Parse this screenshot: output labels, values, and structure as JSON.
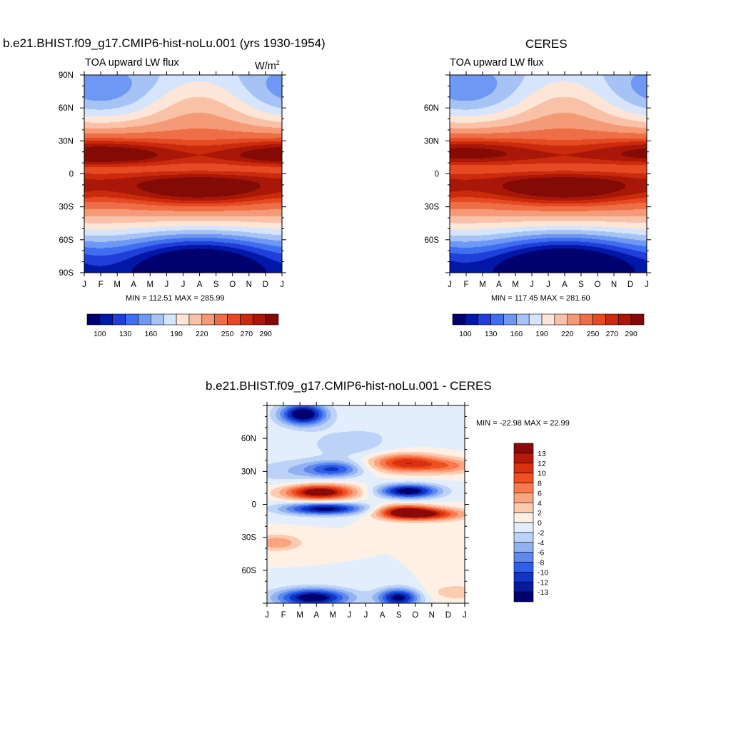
{
  "left_panel": {
    "title": "b.e21.BHIST.f09_g17.CMIP6-hist-noLu.001 (yrs 1930-1954)",
    "subtitle": "TOA upward LW flux",
    "units": "W/m",
    "units_sup": "2",
    "stats": "MIN = 112.51 MAX = 285.99"
  },
  "right_panel": {
    "title": "CERES",
    "subtitle": "TOA upward LW flux",
    "stats": "MIN = 117.45 MAX = 281.60"
  },
  "diff_panel": {
    "title": "b.e21.BHIST.f09_g17.CMIP6-hist-noLu.001 - CERES",
    "stats": "MIN = -22.98 MAX =  22.99"
  },
  "axes": {
    "months": [
      "J",
      "F",
      "M",
      "A",
      "M",
      "J",
      "J",
      "A",
      "S",
      "O",
      "N",
      "D",
      "J"
    ],
    "lat_labels_full": [
      "90N",
      "60N",
      "30N",
      "0",
      "30S",
      "60S",
      "90S"
    ],
    "lat_labels_partial": [
      "60N",
      "30N",
      "0",
      "30S",
      "60S"
    ]
  },
  "colorbar_abs": {
    "labels": [
      "100",
      "130",
      "160",
      "190",
      "220",
      "250",
      "270",
      "290"
    ],
    "colors": [
      "#00006e",
      "#0018a8",
      "#1f3fd8",
      "#3f6ef0",
      "#6f97f4",
      "#a7c3f5",
      "#d6e5fb",
      "#fde6d8",
      "#f9c2a8",
      "#f59a77",
      "#ee6e47",
      "#e64a22",
      "#cc2a0d",
      "#a81707",
      "#830a05"
    ]
  },
  "colorbar_diff": {
    "labels": [
      "13",
      "12",
      "10",
      "8",
      "6",
      "4",
      "2",
      "0",
      "-2",
      "-4",
      "-6",
      "-8",
      "-10",
      "-12",
      "-13"
    ],
    "colors": [
      "#8a0a0a",
      "#b51a0a",
      "#d9310e",
      "#f04f1e",
      "#f77a50",
      "#f9a581",
      "#fccbb0",
      "#fef0e4",
      "#e3eefc",
      "#bcd2f7",
      "#91b1f2",
      "#5f88ee",
      "#2f5ee7",
      "#1134c8",
      "#051b9c",
      "#00006e"
    ]
  },
  "chart_data": [
    {
      "type": "heatmap",
      "title": "b.e21.BHIST.f09_g17.CMIP6-hist-noLu.001 (yrs 1930-1954)",
      "subtitle": "TOA upward LW flux",
      "units": "W/m2",
      "x": [
        "J",
        "F",
        "M",
        "A",
        "M",
        "J",
        "J",
        "A",
        "S",
        "O",
        "N",
        "D",
        "J"
      ],
      "ylim": [
        -90,
        90
      ],
      "contour_levels": [
        100,
        115,
        130,
        145,
        160,
        175,
        190,
        205,
        220,
        235,
        250,
        260,
        270,
        280,
        290
      ],
      "min": 112.51,
      "max": 285.99
    },
    {
      "type": "heatmap",
      "title": "CERES",
      "subtitle": "TOA upward LW flux",
      "x": [
        "J",
        "F",
        "M",
        "A",
        "M",
        "J",
        "J",
        "A",
        "S",
        "O",
        "N",
        "D",
        "J"
      ],
      "ylim": [
        -90,
        90
      ],
      "contour_levels": [
        100,
        115,
        130,
        145,
        160,
        175,
        190,
        205,
        220,
        235,
        250,
        260,
        270,
        280,
        290
      ],
      "min": 117.45,
      "max": 281.6
    },
    {
      "type": "heatmap",
      "title": "b.e21.BHIST.f09_g17.CMIP6-hist-noLu.001 - CERES",
      "x": [
        "J",
        "F",
        "M",
        "A",
        "M",
        "J",
        "J",
        "A",
        "S",
        "O",
        "N",
        "D",
        "J"
      ],
      "ylim": [
        -90,
        90
      ],
      "contour_levels": [
        -13,
        -12,
        -10,
        -8,
        -6,
        -4,
        -2,
        0,
        2,
        4,
        6,
        8,
        10,
        12,
        13
      ],
      "min": -22.98,
      "max": 22.99
    }
  ]
}
